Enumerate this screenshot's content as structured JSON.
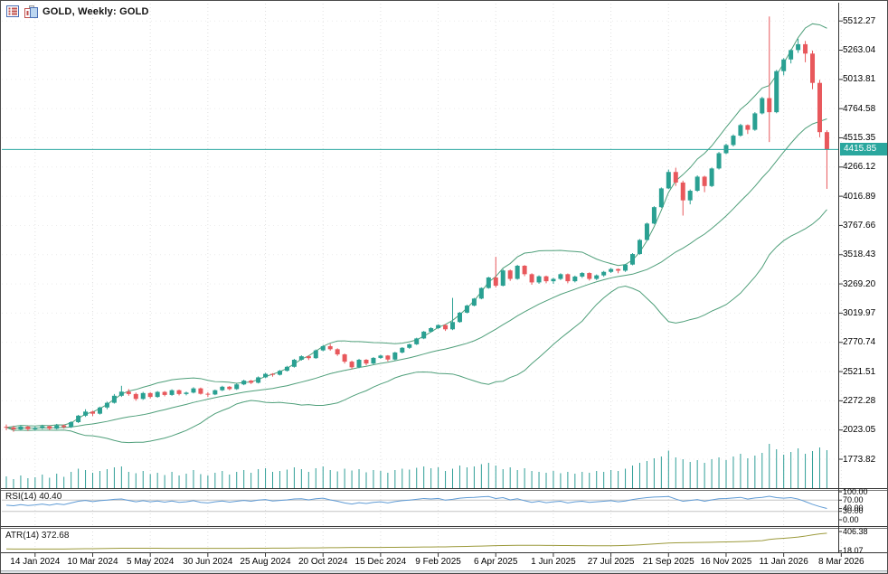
{
  "header": {
    "title": "GOLD, Weekly:  GOLD",
    "icons": [
      "quotes-list-icon",
      "chart-window-icon"
    ]
  },
  "price_axis": {
    "labels": [
      "5512.27",
      "5263.04",
      "5013.81",
      "4764.58",
      "4515.35",
      "4266.12",
      "4016.89",
      "3767.66",
      "3518.43",
      "3269.20",
      "3019.97",
      "2770.74",
      "2521.51",
      "2272.28",
      "2023.05",
      "1773.82"
    ],
    "current_price": "4415.85"
  },
  "time_axis": {
    "labels": [
      "14 Jan 2024",
      "10 Mar 2024",
      "5 May 2024",
      "30 Jun 2024",
      "25 Aug 2024",
      "20 Oct 2024",
      "15 Dec 2024",
      "9 Feb 2025",
      "6 Apr 2025",
      "1 Jun 2025",
      "27 Jul 2025",
      "21 Sep 2025",
      "16 Nov 2025",
      "11 Jan 2026",
      "8 Mar 2026"
    ]
  },
  "panels": {
    "rsi": {
      "label": "RSI(14) 40.40",
      "axis_labels": [
        "100.00",
        "70.00",
        "40.00",
        "30.00",
        "0.00"
      ],
      "levels": [
        70,
        30
      ]
    },
    "atr": {
      "label": "ATR(14) 372.68",
      "axis_labels": [
        "406.38",
        "18.07"
      ]
    }
  },
  "colors": {
    "bull": "#2aa092",
    "bear": "#e8585c",
    "band": "#4f9f7a",
    "price_line": "#2aa7a0",
    "badge_bg": "#2aa79e",
    "rsi_line": "#5f9bd5",
    "atr_line": "#9c9a3c",
    "volume": "#2f9e97",
    "grid": "#e0e0e0",
    "hgrid": "#ececec",
    "level": "#c4c4c4",
    "frame": "#333333"
  },
  "chart_data": {
    "type": "candlestick",
    "symbol": "GOLD",
    "timeframe": "Weekly",
    "title": "GOLD, Weekly: GOLD",
    "ylim": [
      1650,
      5650
    ],
    "indicators": {
      "bollinger": {
        "period": 20,
        "deviation": 2
      },
      "rsi": {
        "period": 14,
        "current": 40.4,
        "range": [
          0,
          100
        ],
        "levels": [
          70,
          30
        ]
      },
      "atr": {
        "period": 14,
        "current": 372.68,
        "scale_max": 406.38,
        "scale_min": 18.07
      }
    },
    "candles": [
      [
        2050,
        2070,
        2022,
        2045
      ],
      [
        2045,
        2060,
        2008,
        2028
      ],
      [
        2028,
        2062,
        2020,
        2052
      ],
      [
        2052,
        2058,
        2015,
        2030
      ],
      [
        2030,
        2052,
        2018,
        2042
      ],
      [
        2042,
        2068,
        2030,
        2055
      ],
      [
        2055,
        2060,
        2022,
        2034
      ],
      [
        2034,
        2075,
        2028,
        2062
      ],
      [
        2062,
        2070,
        2035,
        2048
      ],
      [
        2048,
        2098,
        2040,
        2090
      ],
      [
        2090,
        2152,
        2082,
        2145
      ],
      [
        2145,
        2200,
        2135,
        2180
      ],
      [
        2180,
        2188,
        2142,
        2162
      ],
      [
        2162,
        2222,
        2155,
        2215
      ],
      [
        2215,
        2265,
        2200,
        2255
      ],
      [
        2255,
        2330,
        2248,
        2315
      ],
      [
        2315,
        2400,
        2305,
        2350
      ],
      [
        2350,
        2372,
        2315,
        2330
      ],
      [
        2330,
        2342,
        2272,
        2288
      ],
      [
        2288,
        2348,
        2280,
        2338
      ],
      [
        2338,
        2345,
        2292,
        2305
      ],
      [
        2305,
        2355,
        2298,
        2348
      ],
      [
        2348,
        2355,
        2310,
        2322
      ],
      [
        2322,
        2370,
        2315,
        2362
      ],
      [
        2362,
        2368,
        2318,
        2330
      ],
      [
        2330,
        2350,
        2318,
        2342
      ],
      [
        2342,
        2388,
        2335,
        2378
      ],
      [
        2378,
        2385,
        2325,
        2332
      ],
      [
        2332,
        2345,
        2305,
        2326
      ],
      [
        2326,
        2368,
        2320,
        2362
      ],
      [
        2362,
        2400,
        2355,
        2392
      ],
      [
        2392,
        2398,
        2362,
        2372
      ],
      [
        2372,
        2420,
        2365,
        2412
      ],
      [
        2412,
        2452,
        2405,
        2444
      ],
      [
        2444,
        2450,
        2415,
        2426
      ],
      [
        2426,
        2480,
        2420,
        2472
      ],
      [
        2472,
        2510,
        2465,
        2502
      ],
      [
        2502,
        2508,
        2478,
        2494
      ],
      [
        2494,
        2535,
        2488,
        2528
      ],
      [
        2528,
        2570,
        2522,
        2562
      ],
      [
        2562,
        2630,
        2555,
        2622
      ],
      [
        2622,
        2660,
        2615,
        2652
      ],
      [
        2652,
        2658,
        2620,
        2636
      ],
      [
        2636,
        2710,
        2630,
        2702
      ],
      [
        2702,
        2748,
        2695,
        2738
      ],
      [
        2738,
        2758,
        2700,
        2712
      ],
      [
        2712,
        2720,
        2655,
        2668
      ],
      [
        2668,
        2675,
        2590,
        2606
      ],
      [
        2606,
        2615,
        2542,
        2558
      ],
      [
        2558,
        2630,
        2550,
        2622
      ],
      [
        2622,
        2628,
        2575,
        2590
      ],
      [
        2590,
        2645,
        2582,
        2638
      ],
      [
        2638,
        2665,
        2630,
        2658
      ],
      [
        2658,
        2662,
        2608,
        2624
      ],
      [
        2624,
        2690,
        2618,
        2684
      ],
      [
        2684,
        2730,
        2676,
        2724
      ],
      [
        2724,
        2760,
        2715,
        2754
      ],
      [
        2754,
        2810,
        2748,
        2804
      ],
      [
        2804,
        2868,
        2798,
        2862
      ],
      [
        2862,
        2900,
        2855,
        2892
      ],
      [
        2892,
        2925,
        2885,
        2918
      ],
      [
        2918,
        2926,
        2868,
        2882
      ],
      [
        2882,
        3150,
        2875,
        2944
      ],
      [
        2944,
        3030,
        2938,
        3024
      ],
      [
        3024,
        3092,
        3018,
        3084
      ],
      [
        3084,
        3150,
        3078,
        3144
      ],
      [
        3144,
        3240,
        3138,
        3234
      ],
      [
        3234,
        3330,
        3228,
        3324
      ],
      [
        3324,
        3500,
        3238,
        3254
      ],
      [
        3254,
        3395,
        3248,
        3384
      ],
      [
        3384,
        3392,
        3295,
        3312
      ],
      [
        3312,
        3432,
        3305,
        3424
      ],
      [
        3424,
        3430,
        3335,
        3352
      ],
      [
        3352,
        3360,
        3262,
        3282
      ],
      [
        3282,
        3342,
        3270,
        3334
      ],
      [
        3334,
        3340,
        3275,
        3292
      ],
      [
        3292,
        3322,
        3270,
        3312
      ],
      [
        3312,
        3360,
        3302,
        3352
      ],
      [
        3352,
        3358,
        3275,
        3292
      ],
      [
        3292,
        3340,
        3282,
        3332
      ],
      [
        3332,
        3370,
        3320,
        3362
      ],
      [
        3362,
        3368,
        3298,
        3312
      ],
      [
        3312,
        3350,
        3302,
        3342
      ],
      [
        3342,
        3380,
        3330,
        3372
      ],
      [
        3372,
        3405,
        3362,
        3396
      ],
      [
        3396,
        3402,
        3360,
        3382
      ],
      [
        3382,
        3440,
        3372,
        3434
      ],
      [
        3434,
        3532,
        3428,
        3524
      ],
      [
        3524,
        3652,
        3518,
        3644
      ],
      [
        3644,
        3792,
        3638,
        3784
      ],
      [
        3784,
        3932,
        3778,
        3924
      ],
      [
        3924,
        4092,
        3918,
        4084
      ],
      [
        4084,
        4245,
        4078,
        4224
      ],
      [
        4224,
        4260,
        4105,
        4134
      ],
      [
        4134,
        4150,
        3852,
        3982
      ],
      [
        3982,
        4075,
        3948,
        4064
      ],
      [
        4064,
        4195,
        4055,
        4184
      ],
      [
        4184,
        4192,
        4052,
        4104
      ],
      [
        4104,
        4262,
        4095,
        4254
      ],
      [
        4254,
        4395,
        4245,
        4384
      ],
      [
        4384,
        4465,
        4375,
        4454
      ],
      [
        4454,
        4545,
        4442,
        4534
      ],
      [
        4534,
        4635,
        4525,
        4624
      ],
      [
        4624,
        4630,
        4548,
        4584
      ],
      [
        4584,
        4735,
        4575,
        4724
      ],
      [
        4724,
        4865,
        4715,
        4854
      ],
      [
        4854,
        5550,
        4480,
        4734
      ],
      [
        4734,
        5095,
        4725,
        5084
      ],
      [
        5084,
        5195,
        5048,
        5184
      ],
      [
        5184,
        5272,
        5150,
        5264
      ],
      [
        5264,
        5360,
        5240,
        5314
      ],
      [
        5314,
        5342,
        5160,
        5234
      ],
      [
        5234,
        5260,
        4930,
        4984
      ],
      [
        4984,
        5010,
        4520,
        4564
      ],
      [
        4564,
        4580,
        4080,
        4415.85
      ]
    ],
    "volume": [
      28,
      22,
      30,
      24,
      26,
      32,
      25,
      34,
      27,
      38,
      45,
      42,
      36,
      40,
      44,
      48,
      50,
      38,
      35,
      40,
      33,
      36,
      31,
      38,
      30,
      34,
      42,
      33,
      30,
      36,
      40,
      32,
      38,
      42,
      36,
      44,
      46,
      38,
      40,
      43,
      48,
      44,
      38,
      46,
      50,
      42,
      39,
      45,
      41,
      44,
      37,
      42,
      40,
      36,
      42,
      45,
      43,
      47,
      50,
      46,
      48,
      40,
      45,
      52,
      48,
      50,
      55,
      58,
      52,
      44,
      48,
      42,
      46,
      40,
      38,
      36,
      40,
      35,
      38,
      34,
      38,
      36,
      40,
      38,
      42,
      40,
      45,
      52,
      58,
      62,
      68,
      72,
      85,
      70,
      66,
      60,
      64,
      58,
      66,
      70,
      64,
      72,
      78,
      68,
      74,
      80,
      100,
      88,
      76,
      82,
      90,
      78,
      84,
      92,
      86
    ],
    "rsi": [
      52,
      50,
      54,
      51,
      53,
      56,
      52,
      57,
      54,
      60,
      66,
      69,
      65,
      68,
      70,
      73,
      74,
      69,
      64,
      68,
      64,
      67,
      63,
      67,
      62,
      64,
      68,
      62,
      60,
      64,
      67,
      63,
      66,
      69,
      66,
      70,
      72,
      67,
      69,
      71,
      74,
      75,
      71,
      75,
      77,
      71,
      66,
      60,
      56,
      61,
      58,
      62,
      64,
      60,
      65,
      68,
      70,
      73,
      76,
      74,
      76,
      70,
      73,
      77,
      79,
      80,
      82,
      83,
      76,
      79,
      71,
      75,
      68,
      62,
      66,
      61,
      64,
      66,
      60,
      64,
      66,
      62,
      64,
      66,
      68,
      64,
      67,
      72,
      76,
      79,
      81,
      82,
      83,
      74,
      66,
      69,
      72,
      66,
      71,
      75,
      76,
      78,
      80,
      74,
      78,
      80,
      84,
      79,
      77,
      79,
      74,
      65,
      55,
      47,
      40.4
    ],
    "atr": [
      58,
      57,
      57,
      56,
      56,
      57,
      56,
      57,
      56,
      58,
      61,
      63,
      64,
      66,
      68,
      70,
      72,
      72,
      73,
      73,
      72,
      72,
      71,
      71,
      70,
      70,
      70,
      69,
      69,
      70,
      70,
      70,
      71,
      71,
      72,
      72,
      73,
      74,
      74,
      75,
      77,
      78,
      78,
      80,
      82,
      83,
      84,
      86,
      87,
      88,
      88,
      89,
      89,
      90,
      91,
      92,
      93,
      94,
      96,
      97,
      99,
      100,
      103,
      106,
      109,
      112,
      116,
      120,
      124,
      126,
      128,
      130,
      131,
      131,
      130,
      129,
      128,
      127,
      126,
      125,
      124,
      123,
      122,
      122,
      123,
      125,
      128,
      134,
      141,
      149,
      158,
      167,
      176,
      180,
      184,
      186,
      188,
      190,
      193,
      196,
      198,
      201,
      206,
      210,
      216,
      224,
      248,
      262,
      272,
      282,
      295,
      315,
      338,
      358,
      372.68
    ]
  }
}
